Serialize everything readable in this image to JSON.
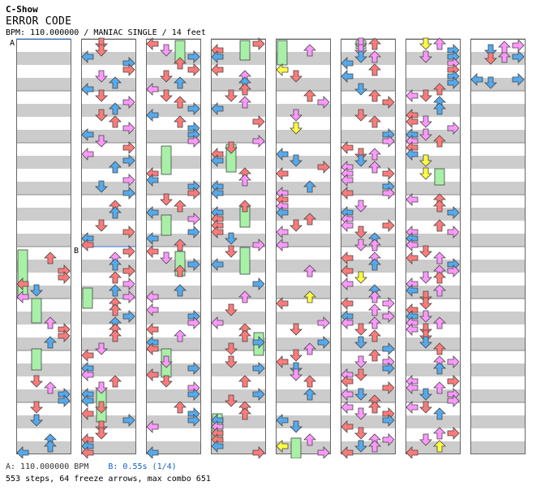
{
  "header": {
    "artist": "C-Show",
    "song_title": "ERROR CODE",
    "info_line": "BPM: 110.000000 / MANIAC SINGLE / 14 feet"
  },
  "markers": {
    "a_label": "A",
    "b_label": "B"
  },
  "footer": {
    "bpm_a": "A: 110.000000 BPM",
    "stop_b": "B: 0.55s (1/4)",
    "summary": "553 steps, 64 freeze arrows, max combo 651"
  },
  "chart": {
    "columns": 8,
    "measures_per_column": 8,
    "lanes": [
      "left",
      "down",
      "up",
      "right"
    ],
    "colors": {
      "quarter": "#ff7b7b",
      "eighth": "#55aaee",
      "sixteenth": "#ffff44",
      "other": "#ff99ff",
      "freeze_body": "#a8f0a8",
      "stripe": "#cccccc"
    },
    "freeze_arrows_shown": 64
  }
}
